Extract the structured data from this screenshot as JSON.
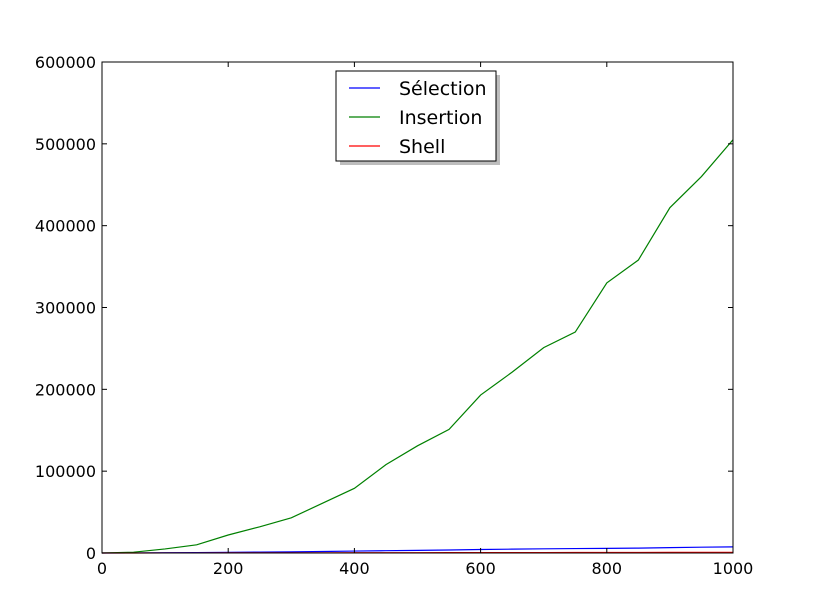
{
  "chart_data": {
    "type": "line",
    "title": "",
    "xlabel": "",
    "ylabel": "",
    "xlim": [
      0,
      1000
    ],
    "ylim": [
      0,
      600000
    ],
    "x_ticks": [
      "0",
      "200",
      "400",
      "600",
      "800",
      "1000"
    ],
    "y_ticks": [
      "0",
      "100000",
      "200000",
      "300000",
      "400000",
      "500000",
      "600000"
    ],
    "x_tick_values": [
      0,
      200,
      400,
      600,
      800,
      1000
    ],
    "y_tick_values": [
      0,
      100000,
      200000,
      300000,
      400000,
      500000,
      600000
    ],
    "grid": false,
    "legend_position": "upper center",
    "x": [
      0,
      50,
      100,
      150,
      200,
      250,
      300,
      350,
      400,
      450,
      500,
      550,
      600,
      650,
      700,
      750,
      800,
      850,
      900,
      950,
      1000
    ],
    "series": [
      {
        "name": "Sélection",
        "color": "#0000ff",
        "values": [
          0,
          100,
          300,
          500,
          800,
          1100,
          1400,
          1800,
          2400,
          2800,
          3200,
          3700,
          4300,
          4700,
          5100,
          5400,
          5700,
          6000,
          6600,
          7100,
          7500
        ]
      },
      {
        "name": "Insertion",
        "color": "#008000",
        "values": [
          0,
          1000,
          5000,
          10000,
          22000,
          32000,
          43000,
          61000,
          79000,
          108000,
          131000,
          151000,
          193000,
          221000,
          251000,
          270000,
          330000,
          358000,
          422000,
          460000,
          505000
        ]
      },
      {
        "name": "Shell",
        "color": "#ff0000",
        "values": [
          0,
          20,
          50,
          80,
          120,
          160,
          200,
          240,
          280,
          320,
          370,
          420,
          460,
          500,
          550,
          600,
          640,
          690,
          740,
          790,
          840
        ]
      }
    ]
  }
}
